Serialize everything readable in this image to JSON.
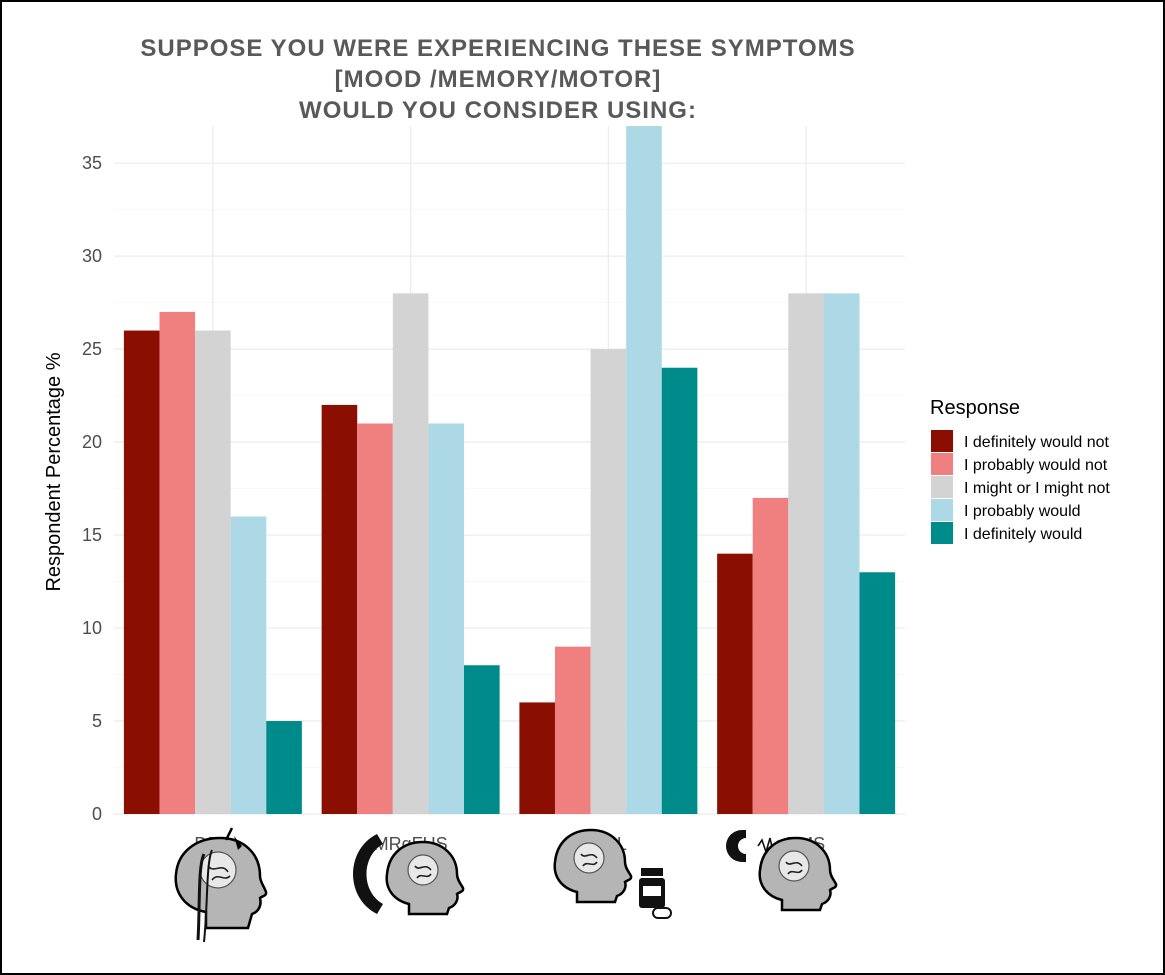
{
  "chart_data": {
    "type": "bar",
    "title_lines": [
      "SUPPOSE YOU WERE EXPERIENCING THESE SYMPTOMS",
      "[MOOD /MEMORY/MOTOR]",
      "WOULD YOU CONSIDER USING:"
    ],
    "xlabel": "",
    "ylabel": "Respondent Percentage %",
    "ylim": [
      0,
      37
    ],
    "yticks": [
      0,
      5,
      10,
      15,
      20,
      25,
      30,
      35
    ],
    "grid": true,
    "categories": [
      "DBS",
      "MRgFUS",
      "PILL",
      "TMS"
    ],
    "category_icons": [
      "brain-electrode-icon",
      "brain-ultrasound-icon",
      "brain-pill-bottle-icon",
      "brain-magnet-icon"
    ],
    "legend_title": "Response",
    "legend_position": "right",
    "series": [
      {
        "name": "I definitely would not",
        "color": "#8b0f00",
        "values": [
          26,
          22,
          6,
          14
        ]
      },
      {
        "name": "I probably would not",
        "color": "#f08080",
        "values": [
          27,
          21,
          9,
          17
        ]
      },
      {
        "name": "I might or I might not",
        "color": "#d3d3d3",
        "values": [
          26,
          28,
          25,
          28
        ]
      },
      {
        "name": "I probably would",
        "color": "#add8e6",
        "values": [
          16,
          21,
          37,
          28
        ]
      },
      {
        "name": "I definitely would",
        "color": "#008b8b",
        "values": [
          5,
          8,
          24,
          13
        ]
      }
    ]
  }
}
